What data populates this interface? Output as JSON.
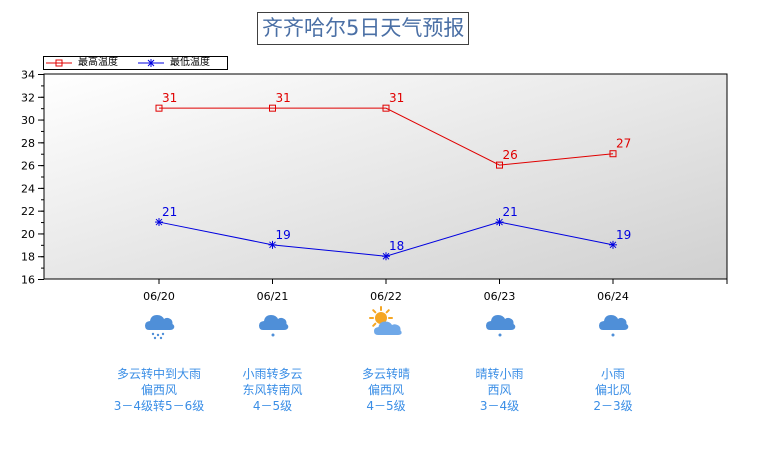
{
  "title": "齐齐哈尔5日天气预报",
  "chart_data": {
    "type": "line",
    "categories": [
      "06/20",
      "06/21",
      "06/22",
      "06/23",
      "06/24"
    ],
    "series": [
      {
        "name": "最高温度",
        "values": [
          31,
          31,
          31,
          26,
          27
        ],
        "color": "#e00000",
        "marker": "square"
      },
      {
        "name": "最低温度",
        "values": [
          21,
          19,
          18,
          21,
          19
        ],
        "color": "#0000e0",
        "marker": "asterisk"
      }
    ],
    "ylim": [
      16,
      34
    ],
    "yticks": [
      16,
      18,
      20,
      22,
      24,
      26,
      28,
      30,
      32,
      34
    ],
    "legend_position": "top-left",
    "grid": false
  },
  "forecast": [
    {
      "icon": "heavy-rain-icon",
      "weather": "多云转中到大雨",
      "wind_dir": "偏西风",
      "wind_level": "3－4级转5－6级"
    },
    {
      "icon": "light-rain-icon",
      "weather": "小雨转多云",
      "wind_dir": "东风转南风",
      "wind_level": "4－5级"
    },
    {
      "icon": "sun-cloud-icon",
      "weather": "多云转晴",
      "wind_dir": "偏西风",
      "wind_level": "4－5级"
    },
    {
      "icon": "light-rain-icon",
      "weather": "晴转小雨",
      "wind_dir": "西风",
      "wind_level": "3－4级"
    },
    {
      "icon": "light-rain-icon",
      "weather": "小雨",
      "wind_dir": "偏北风",
      "wind_level": "2－3级"
    }
  ],
  "colors": {
    "rain_cloud": "#4f8fd8",
    "sun": "#f5a623",
    "text": "#3a8ee6"
  }
}
